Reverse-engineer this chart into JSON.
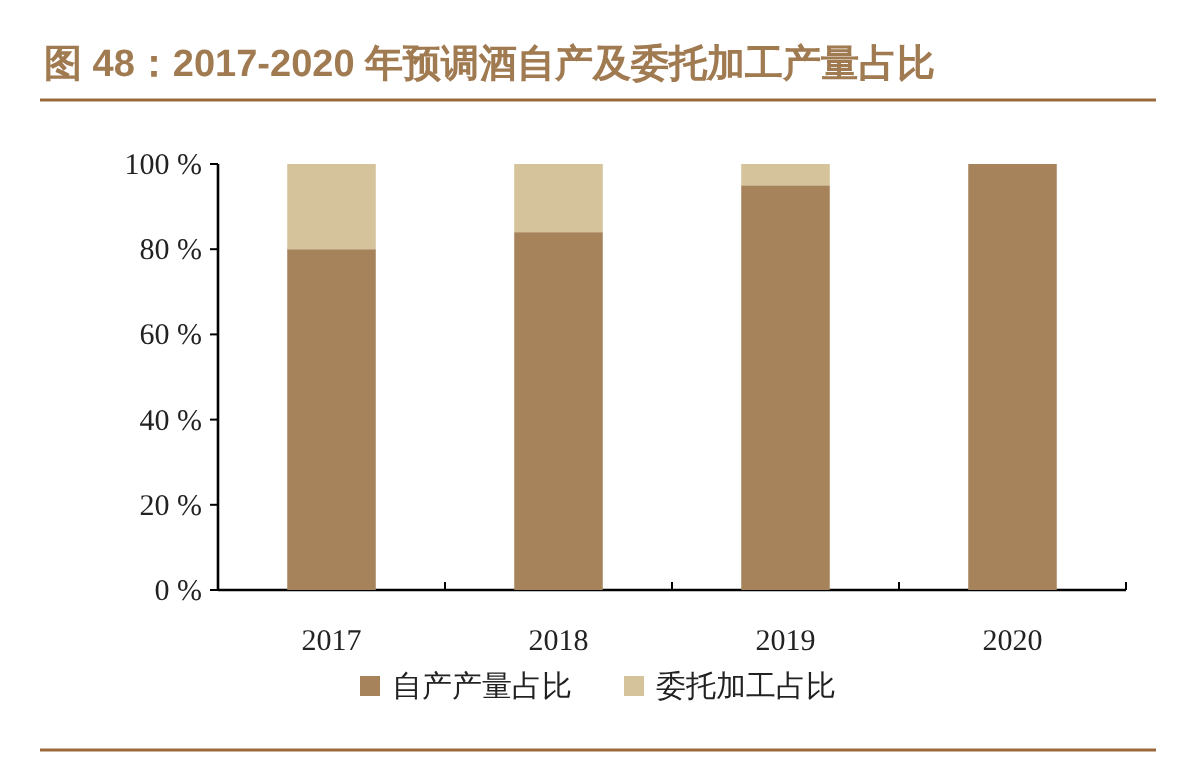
{
  "chart_data": {
    "type": "bar",
    "title": "图 48：2017-2020 年预调酒自产及委托加工产量占比",
    "categories": [
      "2017",
      "2018",
      "2019",
      "2020"
    ],
    "stacked": true,
    "series": [
      {
        "name": "自产产量占比",
        "color": "#a6835b",
        "values": [
          80,
          84,
          95,
          100
        ]
      },
      {
        "name": "委托加工占比",
        "color": "#d5c39b",
        "values": [
          20,
          16,
          5,
          0
        ]
      }
    ],
    "ylim": [
      0,
      100
    ],
    "yticks": [
      {
        "value": 0,
        "label": "0 %"
      },
      {
        "value": 20,
        "label": "20 %"
      },
      {
        "value": 40,
        "label": "40 %"
      },
      {
        "value": 60,
        "label": "60 %"
      },
      {
        "value": 80,
        "label": "80 %"
      },
      {
        "value": 100,
        "label": "100 %"
      }
    ],
    "legend": "bottom"
  }
}
